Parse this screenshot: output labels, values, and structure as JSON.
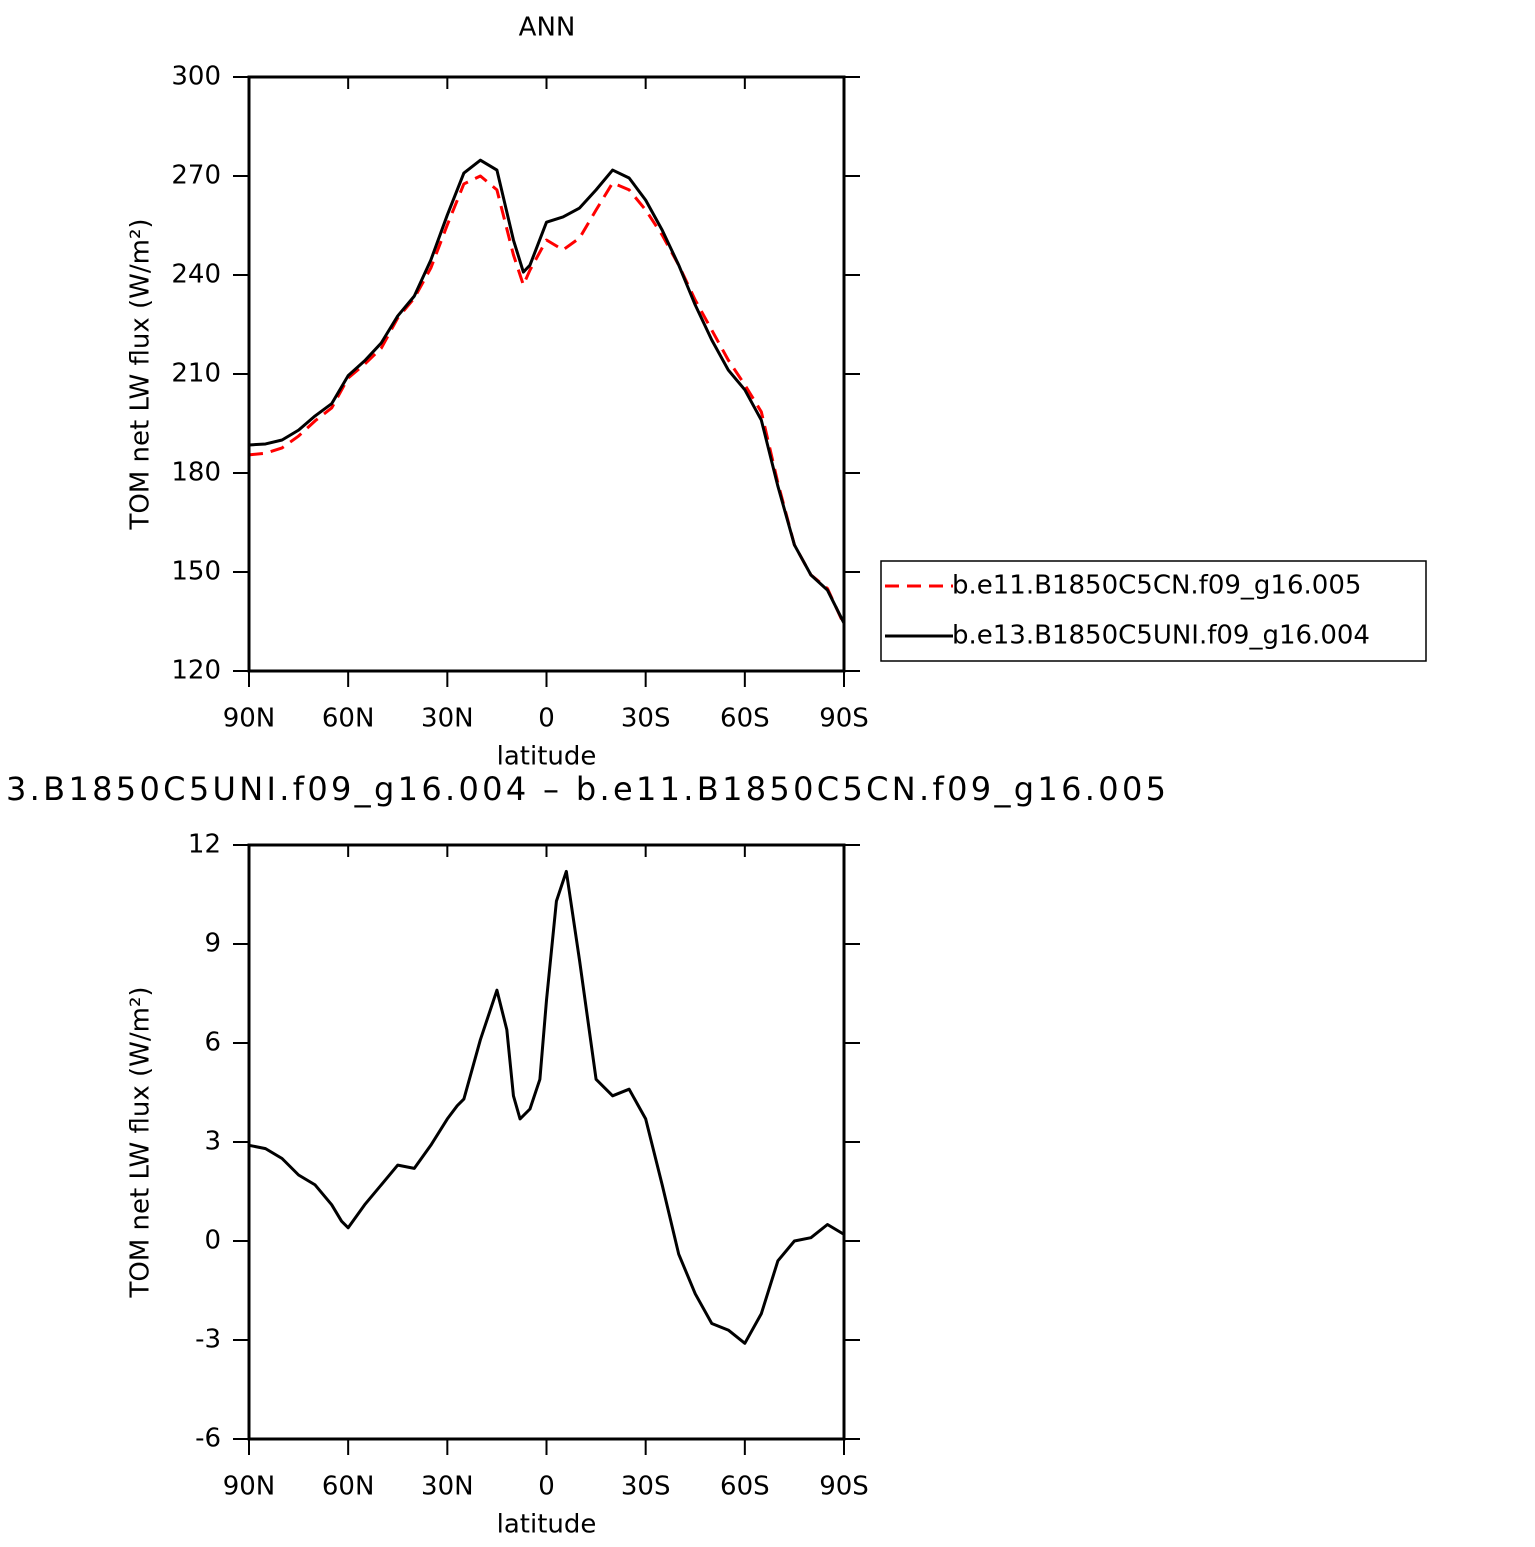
{
  "chart_data": [
    {
      "type": "line",
      "title": "ANN",
      "xlabel": "latitude",
      "ylabel": "TOM net LW flux (W/m²)",
      "x": [
        90,
        85,
        80,
        75,
        70,
        65,
        60,
        55,
        50,
        45,
        40,
        35,
        30,
        25,
        20,
        15,
        10,
        7,
        5,
        0,
        -5,
        -10,
        -15,
        -20,
        -25,
        -30,
        -35,
        -40,
        -45,
        -50,
        -55,
        -60,
        -65,
        -70,
        -75,
        -80,
        -85,
        -90
      ],
      "xlim": [
        90,
        -90
      ],
      "xticks": [
        {
          "value": 90,
          "label": "90N"
        },
        {
          "value": 60,
          "label": "60N"
        },
        {
          "value": 30,
          "label": "30N"
        },
        0,
        {
          "value": -30,
          "label": "30S"
        },
        {
          "value": -60,
          "label": "60S"
        },
        {
          "value": -90,
          "label": "90S"
        }
      ],
      "ylim": [
        120,
        300
      ],
      "yticks": [
        120,
        150,
        180,
        210,
        240,
        270,
        300
      ],
      "legend": "right",
      "series": [
        {
          "name": "b.e11.B1850C5CN.f09_g16.005",
          "color": "#ff0000",
          "style": "dashed",
          "values": [
            185.5,
            186,
            187.6,
            191.2,
            195.8,
            199.7,
            208.8,
            213,
            217.8,
            227,
            233,
            242.1,
            255.2,
            267.6,
            270,
            265.8,
            246.1,
            237,
            241.5,
            250.6,
            247.6,
            251.2,
            259.7,
            267.9,
            265.8,
            259.7,
            252.1,
            243,
            232.4,
            223.3,
            214.2,
            206.7,
            198.5,
            177,
            158.2,
            149.1,
            145,
            134
          ]
        },
        {
          "name": "b.e13.B1850C5UNI.f09_g16.004",
          "color": "#000000",
          "style": "solid",
          "values": [
            188.5,
            188.8,
            190,
            193,
            197.3,
            201,
            209.5,
            214,
            219.4,
            227.6,
            233.6,
            244.5,
            258.2,
            270.9,
            274.8,
            271.8,
            250.6,
            240.9,
            243,
            256,
            257.6,
            260.3,
            265.8,
            271.8,
            269.4,
            262.7,
            253.6,
            243,
            230.9,
            220.3,
            211.2,
            205.2,
            196,
            176,
            158.2,
            149.1,
            144.5,
            134.5
          ]
        }
      ]
    },
    {
      "type": "line",
      "title": "3.B1850C5UNI.f09_g16.004 – b.e11.B1850C5CN.f09_g16.005",
      "xlabel": "latitude",
      "ylabel": "TOM net LW flux (W/m²)",
      "x": [
        90,
        85,
        80,
        75,
        70,
        65,
        62,
        60,
        55,
        50,
        45,
        40,
        35,
        30,
        27,
        25,
        20,
        15,
        12,
        10,
        8,
        5,
        2,
        0,
        -3,
        -6,
        -10,
        -15,
        -20,
        -25,
        -30,
        -35,
        -40,
        -45,
        -50,
        -55,
        -60,
        -65,
        -70,
        -75,
        -80,
        -85,
        -90
      ],
      "xlim": [
        90,
        -90
      ],
      "xticks": [
        {
          "value": 90,
          "label": "90N"
        },
        {
          "value": 60,
          "label": "60N"
        },
        {
          "value": 30,
          "label": "30N"
        },
        0,
        {
          "value": -30,
          "label": "30S"
        },
        {
          "value": -60,
          "label": "60S"
        },
        {
          "value": -90,
          "label": "90S"
        }
      ],
      "ylim": [
        -6,
        12
      ],
      "yticks": [
        -6,
        -3,
        0,
        3,
        6,
        9,
        12
      ],
      "series": [
        {
          "color": "#000000",
          "style": "solid",
          "values": [
            2.9,
            2.8,
            2.5,
            2.0,
            1.7,
            1.1,
            0.6,
            0.4,
            1.1,
            1.7,
            2.3,
            2.2,
            2.9,
            3.7,
            4.1,
            4.3,
            6.1,
            7.6,
            6.4,
            4.4,
            3.7,
            4.0,
            4.9,
            7.3,
            10.3,
            11.2,
            8.5,
            4.9,
            4.4,
            4.6,
            3.7,
            1.7,
            -0.4,
            -1.6,
            -2.5,
            -2.7,
            -3.1,
            -2.2,
            -0.6,
            0.0,
            0.1,
            0.5,
            0.2
          ]
        }
      ]
    }
  ]
}
